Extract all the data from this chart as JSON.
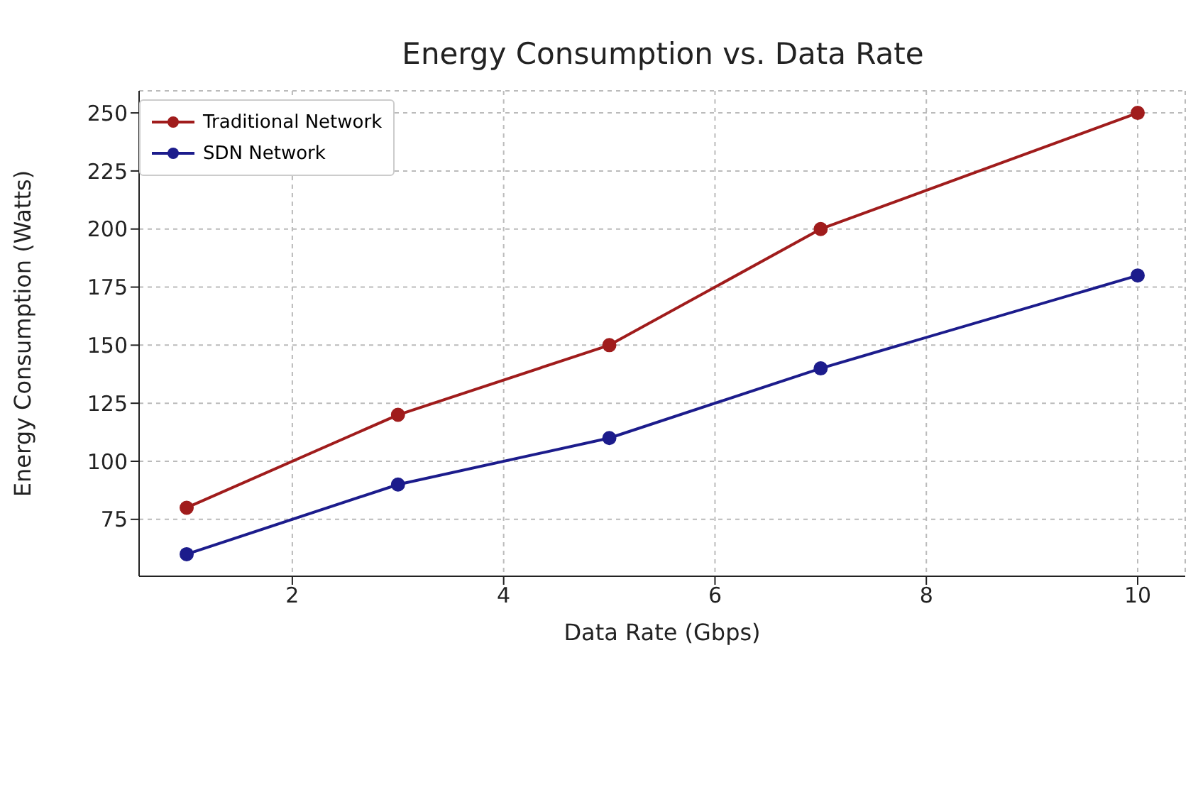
{
  "chart_data": {
    "type": "line",
    "title": "Energy Consumption vs. Data Rate",
    "xlabel": "Data Rate (Gbps)",
    "ylabel": "Energy Consumption (Watts)",
    "x": [
      1,
      3,
      5,
      7,
      10
    ],
    "series": [
      {
        "name": "Traditional Network",
        "color": "#a01c1c",
        "values": [
          80,
          120,
          150,
          200,
          250
        ]
      },
      {
        "name": "SDN Network",
        "color": "#1c1c8c",
        "values": [
          60,
          90,
          110,
          140,
          180
        ]
      }
    ],
    "xlim": [
      0.55,
      10.45
    ],
    "xticks": [
      2,
      4,
      6,
      8,
      10
    ],
    "ylim": [
      50.5,
      259.5
    ],
    "yticks": [
      75,
      100,
      125,
      150,
      175,
      200,
      225,
      250
    ],
    "grid": true,
    "legend": "top left",
    "marker": "circle",
    "line_style": "solid"
  }
}
